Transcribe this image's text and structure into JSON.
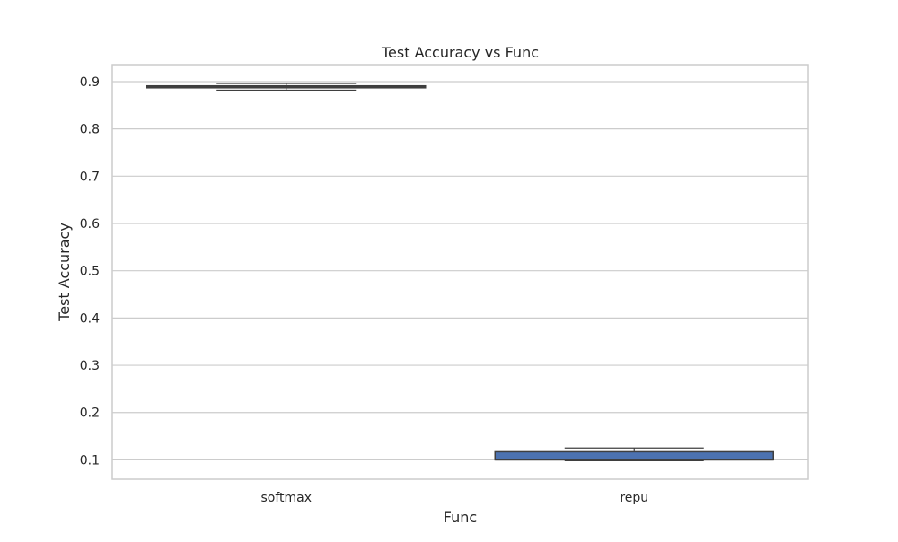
{
  "chart_data": {
    "type": "box",
    "title": "Test Accuracy vs Func",
    "xlabel": "Func",
    "ylabel": "Test Accuracy",
    "categories": [
      "softmax",
      "repu"
    ],
    "ylim": [
      0.059,
      0.936
    ],
    "yticks": [
      0.1,
      0.2,
      0.3,
      0.4,
      0.5,
      0.6,
      0.7,
      0.8,
      0.9
    ],
    "ytick_labels": [
      "0.1",
      "0.2",
      "0.3",
      "0.4",
      "0.5",
      "0.6",
      "0.7",
      "0.8",
      "0.9"
    ],
    "grid": true,
    "box_color": "#4c72b0",
    "edge_color": "#3f3f3f",
    "grid_color": "#cccccc",
    "boxes": [
      {
        "category": "softmax",
        "whisker_low": 0.882,
        "q1": 0.887,
        "median": 0.889,
        "q3": 0.891,
        "whisker_high": 0.896
      },
      {
        "category": "repu",
        "whisker_low": 0.098,
        "q1": 0.1,
        "median": 0.1,
        "q3": 0.117,
        "whisker_high": 0.125
      }
    ]
  }
}
